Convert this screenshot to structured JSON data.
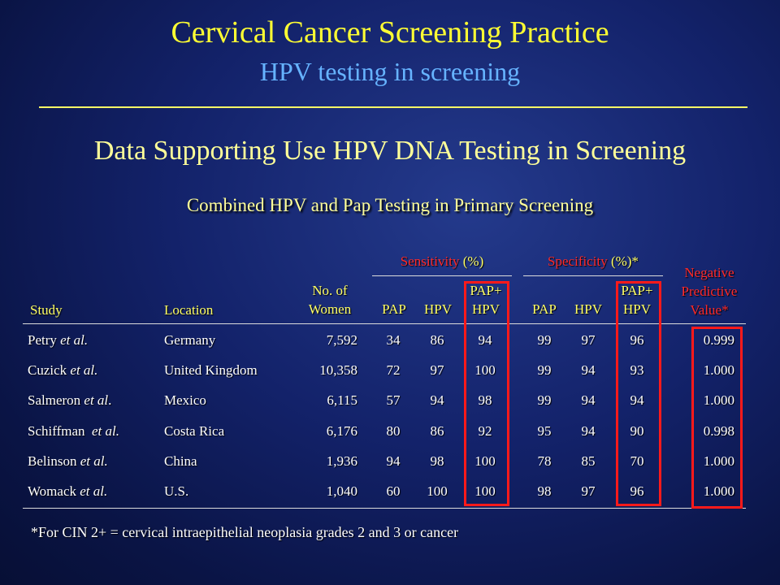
{
  "slide": {
    "title": "Cervical Cancer Screening Practice",
    "subtitle": "HPV testing in screening",
    "heading": "Data Supporting Use HPV DNA Testing in Screening",
    "caption": "Combined HPV and Pap Testing in Primary Screening",
    "footnote": "*For CIN 2+ = cervical intraepithelial neoplasia grades 2 and 3 or cancer"
  },
  "table": {
    "groups": {
      "sensitivity": {
        "label": "Sensitivity",
        "unit": "(%)"
      },
      "specificity": {
        "label": "Specificity",
        "unit": "(%)*"
      }
    },
    "headers": {
      "study": "Study",
      "location": "Location",
      "women_l1": "No. of",
      "women_l2": "Women",
      "pap": "PAP",
      "hpv": "HPV",
      "both_l1": "PAP+",
      "both_l2": "HPV",
      "npv_l1": "Negative",
      "npv_l2": "Predictive",
      "npv_l3": "Value*"
    },
    "rows": [
      {
        "study": "Petry",
        "etal": "et al.",
        "location": "Germany",
        "women": "7,592",
        "sens_pap": "34",
        "sens_hpv": "86",
        "sens_both": "94",
        "spec_pap": "99",
        "spec_hpv": "97",
        "spec_both": "96",
        "npv": "0.999"
      },
      {
        "study": "Cuzick",
        "etal": "et al.",
        "location": "United Kingdom",
        "women": "10,358",
        "sens_pap": "72",
        "sens_hpv": "97",
        "sens_both": "100",
        "spec_pap": "99",
        "spec_hpv": "94",
        "spec_both": "93",
        "npv": "1.000"
      },
      {
        "study": "Salmeron",
        "etal": "et al",
        "location": "Mexico",
        "women": "6,115",
        "sens_pap": "57",
        "sens_hpv": "94",
        "sens_both": "98",
        "spec_pap": "99",
        "spec_hpv": "94",
        "spec_both": "94",
        "npv": "1.000"
      },
      {
        "study": "Schiffman",
        "etal": "et al.",
        "location": "Costa Rica",
        "women": "6,176",
        "sens_pap": "80",
        "sens_hpv": "86",
        "sens_both": "92",
        "spec_pap": "95",
        "spec_hpv": "94",
        "spec_both": "90",
        "npv": "0.998"
      },
      {
        "study": "Belinson",
        "etal": "et al.",
        "location": "China",
        "women": "1,936",
        "sens_pap": "94",
        "sens_hpv": "98",
        "sens_both": "100",
        "spec_pap": "78",
        "spec_hpv": "85",
        "spec_both": "70",
        "npv": "1.000"
      },
      {
        "study": "Womack",
        "etal": "et al.",
        "location": "U.S.",
        "women": "1,040",
        "sens_pap": "60",
        "sens_hpv": "100",
        "sens_both": "100",
        "spec_pap": "98",
        "spec_hpv": "97",
        "spec_both": "96",
        "npv": "1.000"
      }
    ]
  }
}
